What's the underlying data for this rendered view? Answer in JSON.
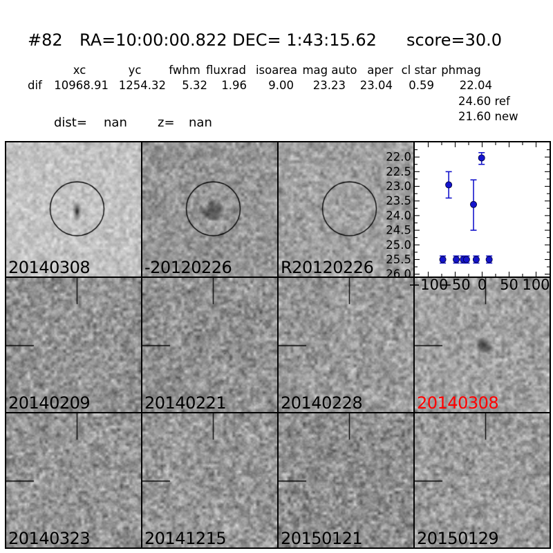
{
  "header": {
    "id": "#82",
    "coords": "RA=10:00:00.822 DEC= 1:43:15.62",
    "score": "score=30.0"
  },
  "stats": {
    "row_label": "dif",
    "headers": [
      "xc",
      "yc",
      "fwhm",
      "fluxrad",
      "isoarea",
      "mag auto",
      "aper",
      "cl star",
      "phmag"
    ],
    "values": [
      "10968.91",
      "1254.32",
      "5.32",
      "1.96",
      "9.00",
      "23.23",
      "23.04",
      "0.59",
      "22.04"
    ],
    "ref_line": "24.60 ref",
    "new_line": "21.60 new",
    "dist_label": "dist=",
    "dist_value": "nan",
    "z_label": "z=",
    "z_value": "nan"
  },
  "colors": {
    "marker_blue": "#1414cc",
    "highlight_red": "#ff0000",
    "text_black": "#000000"
  },
  "panels": [
    {
      "label": "20140308",
      "label_color": "#000000",
      "marker": "circle",
      "source": "smudge",
      "gray": 196,
      "amp": 34
    },
    {
      "label": "-20120226",
      "label_color": "#000000",
      "marker": "circle",
      "source": "blob",
      "gray": 150,
      "amp": 48
    },
    {
      "label": "R20120226",
      "label_color": "#000000",
      "marker": "circle",
      "source": "none",
      "gray": 162,
      "amp": 45
    },
    {
      "label": "",
      "type": "chart"
    },
    {
      "label": "20140209",
      "label_color": "#000000",
      "marker": "crosshair",
      "source": "none",
      "gray": 148,
      "amp": 55
    },
    {
      "label": "20140221",
      "label_color": "#000000",
      "marker": "crosshair",
      "source": "none",
      "gray": 146,
      "amp": 55
    },
    {
      "label": "20140228",
      "label_color": "#000000",
      "marker": "crosshair",
      "source": "none",
      "gray": 154,
      "amp": 52
    },
    {
      "label": "20140308",
      "label_color": "#ff0000",
      "marker": "crosshair",
      "source": "blob-small",
      "gray": 162,
      "amp": 50
    },
    {
      "label": "20140323",
      "label_color": "#000000",
      "marker": "crosshair",
      "source": "none",
      "gray": 150,
      "amp": 56
    },
    {
      "label": "20141215",
      "label_color": "#000000",
      "marker": "crosshair",
      "source": "none",
      "gray": 152,
      "amp": 56
    },
    {
      "label": "20150121",
      "label_color": "#000000",
      "marker": "crosshair",
      "source": "none",
      "gray": 144,
      "amp": 58
    },
    {
      "label": "20150129",
      "label_color": "#000000",
      "marker": "crosshair",
      "source": "none",
      "gray": 156,
      "amp": 54
    }
  ],
  "chart_data": {
    "type": "scatter",
    "title": "",
    "xlabel": "",
    "ylabel": "",
    "legend": null,
    "grid": false,
    "x_axis": {
      "lim": [
        -125,
        125
      ],
      "major_ticks": [
        -100,
        -50,
        0,
        50,
        100
      ],
      "tick_labels": [
        "−100",
        "−50",
        "0",
        "50",
        "100"
      ],
      "minor_step": 25
    },
    "y_axis": {
      "lim": [
        21.5,
        26.08
      ],
      "inverted": true,
      "major_ticks": [
        22.0,
        22.5,
        23.0,
        23.5,
        24.0,
        24.5,
        25.0,
        25.5,
        26.0
      ],
      "tick_labels": [
        "22.0",
        "22.5",
        "23.0",
        "23.5",
        "24.0",
        "24.5",
        "25.0",
        "25.5",
        "26.0"
      ],
      "minor_step": 0.25
    },
    "series": [
      {
        "name": "detections",
        "marker": "circle",
        "color": "#1414cc",
        "points": [
          {
            "x": -62,
            "y": 22.95,
            "err_up": 0.45,
            "err_dn": 0.45
          },
          {
            "x": -16,
            "y": 23.62,
            "err_up": 0.84,
            "err_dn": 0.88
          },
          {
            "x": -1,
            "y": 22.03,
            "err_up": 0.18,
            "err_dn": 0.22
          }
        ]
      },
      {
        "name": "limits",
        "marker": "circle",
        "color": "#1414cc",
        "y": 25.5,
        "err": 0.12,
        "x_values": [
          -73,
          -48,
          -35,
          -29,
          -11,
          13
        ]
      }
    ]
  }
}
